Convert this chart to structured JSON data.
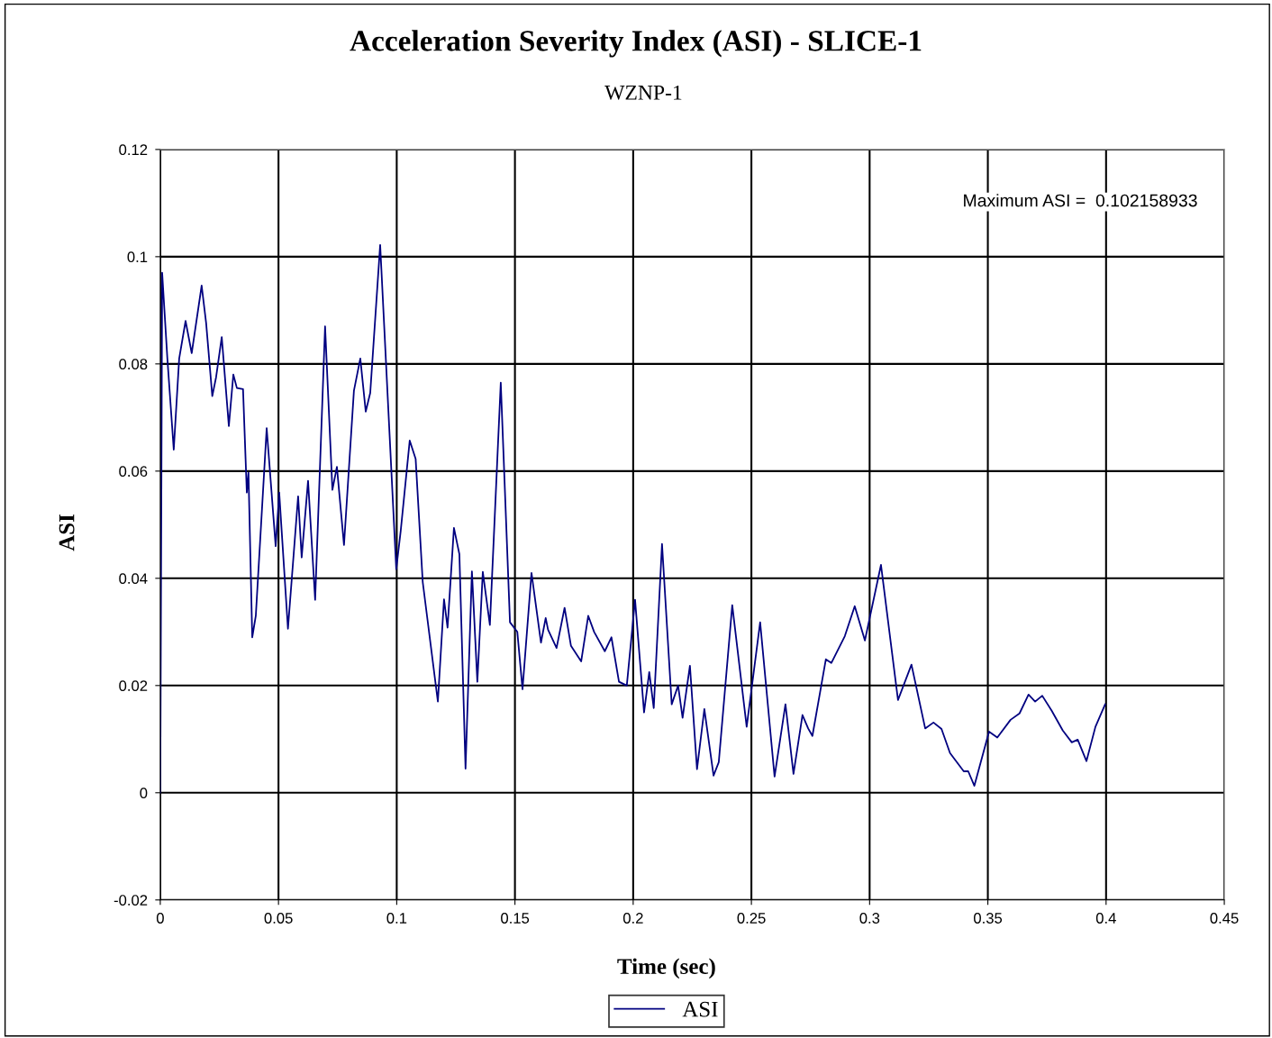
{
  "chart_data": {
    "type": "line",
    "title": "Acceleration Severity Index (ASI) - SLICE-1",
    "subtitle": "WZNP-1",
    "xlabel": "Time (sec)",
    "ylabel": "ASI",
    "annotations": [
      "Maximum ASI =  0.102158933"
    ],
    "xlim": [
      0,
      0.45
    ],
    "xticks": [
      0,
      0.05,
      0.1,
      0.15,
      0.2,
      0.25,
      0.3,
      0.35,
      0.4,
      0.45
    ],
    "ylim": [
      -0.02,
      0.12
    ],
    "yticks": [
      -0.02,
      0,
      0.02,
      0.04,
      0.06,
      0.08,
      0.1,
      0.12
    ],
    "grid": true,
    "legend": "bottom",
    "marker": "none",
    "line_style": "solid",
    "series": [
      {
        "name": "ASI",
        "color": "#000080",
        "x": [
          0,
          0.0008,
          0.003,
          0.0057,
          0.008,
          0.0107,
          0.0133,
          0.0175,
          0.0194,
          0.022,
          0.0236,
          0.026,
          0.029,
          0.0309,
          0.0324,
          0.035,
          0.0366,
          0.0373,
          0.0389,
          0.0404,
          0.045,
          0.0488,
          0.0503,
          0.054,
          0.0583,
          0.0598,
          0.0625,
          0.0655,
          0.0697,
          0.0728,
          0.0747,
          0.0777,
          0.0819,
          0.0846,
          0.0869,
          0.0888,
          0.093,
          0.0998,
          0.1017,
          0.1055,
          0.108,
          0.111,
          0.1174,
          0.12,
          0.1215,
          0.1242,
          0.1265,
          0.1291,
          0.1318,
          0.1341,
          0.1364,
          0.1394,
          0.144,
          0.1479,
          0.151,
          0.1532,
          0.157,
          0.161,
          0.163,
          0.164,
          0.1676,
          0.171,
          0.1737,
          0.178,
          0.181,
          0.1835,
          0.188,
          0.1908,
          0.194,
          0.1973,
          0.2008,
          0.2046,
          0.2068,
          0.2087,
          0.2122,
          0.2163,
          0.219,
          0.2209,
          0.224,
          0.227,
          0.2301,
          0.234,
          0.2362,
          0.2419,
          0.248,
          0.2537,
          0.2598,
          0.2644,
          0.2678,
          0.2716,
          0.274,
          0.2758,
          0.2815,
          0.2838,
          0.2895,
          0.2937,
          0.298,
          0.3048,
          0.312,
          0.3177,
          0.3235,
          0.327,
          0.3304,
          0.334,
          0.3398,
          0.3417,
          0.3443,
          0.3505,
          0.354,
          0.3596,
          0.3634,
          0.3672,
          0.37,
          0.373,
          0.377,
          0.3817,
          0.3855,
          0.388,
          0.3917,
          0.3955,
          0.3996
        ],
        "values": [
          0,
          0.097,
          0.081,
          0.064,
          0.081,
          0.088,
          0.082,
          0.0946,
          0.0876,
          0.074,
          0.0775,
          0.085,
          0.0684,
          0.078,
          0.0755,
          0.0753,
          0.056,
          0.0597,
          0.029,
          0.033,
          0.068,
          0.046,
          0.056,
          0.0306,
          0.0553,
          0.0439,
          0.0582,
          0.036,
          0.087,
          0.0565,
          0.0608,
          0.0462,
          0.075,
          0.081,
          0.0711,
          0.0746,
          0.1022,
          0.0417,
          0.0489,
          0.0657,
          0.0623,
          0.0393,
          0.017,
          0.0361,
          0.0308,
          0.0494,
          0.0445,
          0.0045,
          0.0413,
          0.0207,
          0.0412,
          0.0313,
          0.0765,
          0.0318,
          0.03,
          0.0193,
          0.041,
          0.028,
          0.0326,
          0.0304,
          0.027,
          0.0345,
          0.0274,
          0.0245,
          0.033,
          0.03,
          0.0264,
          0.029,
          0.0207,
          0.02,
          0.036,
          0.015,
          0.0225,
          0.0158,
          0.0464,
          0.0165,
          0.02,
          0.014,
          0.0237,
          0.0044,
          0.0156,
          0.0032,
          0.0057,
          0.035,
          0.0123,
          0.0318,
          0.003,
          0.0165,
          0.0035,
          0.0145,
          0.012,
          0.0106,
          0.0249,
          0.0242,
          0.0292,
          0.0348,
          0.0284,
          0.0425,
          0.0173,
          0.0239,
          0.012,
          0.0131,
          0.0119,
          0.0074,
          0.004,
          0.004,
          0.0013,
          0.0114,
          0.0103,
          0.0136,
          0.0148,
          0.0183,
          0.017,
          0.0181,
          0.0153,
          0.0116,
          0.0094,
          0.0099,
          0.0059,
          0.0123,
          0.0165
        ]
      }
    ]
  }
}
